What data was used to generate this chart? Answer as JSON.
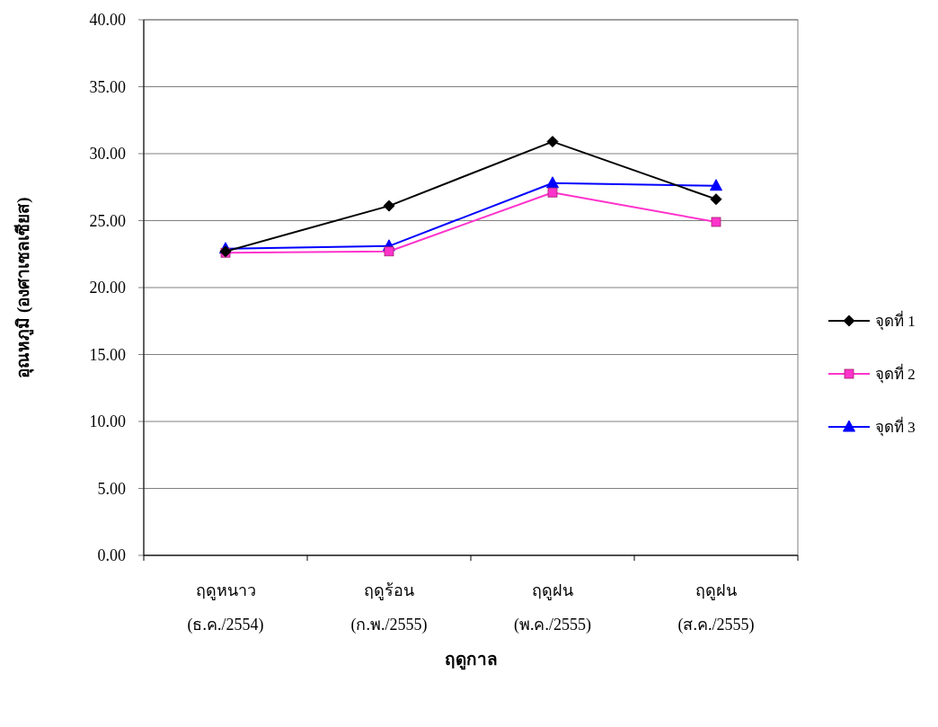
{
  "chart_data": {
    "type": "line",
    "ylabel": "อุณหภูมิ (องศาเซลเซียส)",
    "xlabel": "ฤดูกาล",
    "categories": [
      "ฤดูหนาว\n(ธ.ค./2554)",
      "ฤดูร้อน\n(ก.พ./2555)",
      "ฤดูฝน\n(พ.ค./2555)",
      "ฤดูฝน\n(ส.ค./2555)"
    ],
    "series": [
      {
        "name": "จุดที่ 1",
        "color": "#000000",
        "marker": "diamond",
        "values": [
          22.7,
          26.1,
          30.9,
          26.6
        ]
      },
      {
        "name": "จุดที่ 2",
        "color": "#ff33cc",
        "marker": "square",
        "values": [
          22.6,
          22.7,
          27.1,
          24.9
        ]
      },
      {
        "name": "จุดที่ 3",
        "color": "#0000ff",
        "marker": "triangle",
        "values": [
          22.9,
          23.1,
          27.8,
          27.6
        ]
      }
    ],
    "ylim": [
      0,
      40
    ],
    "yticks": [
      {
        "value": 0,
        "label": "0.00"
      },
      {
        "value": 5,
        "label": "5.00"
      },
      {
        "value": 10,
        "label": "10.00"
      },
      {
        "value": 15,
        "label": "15.00"
      },
      {
        "value": 20,
        "label": "20.00"
      },
      {
        "value": 25,
        "label": "25.00"
      },
      {
        "value": 30,
        "label": "30.00"
      },
      {
        "value": 35,
        "label": "35.00"
      },
      {
        "value": 40,
        "label": "40.00"
      }
    ],
    "grid": "y",
    "legend": "right"
  }
}
